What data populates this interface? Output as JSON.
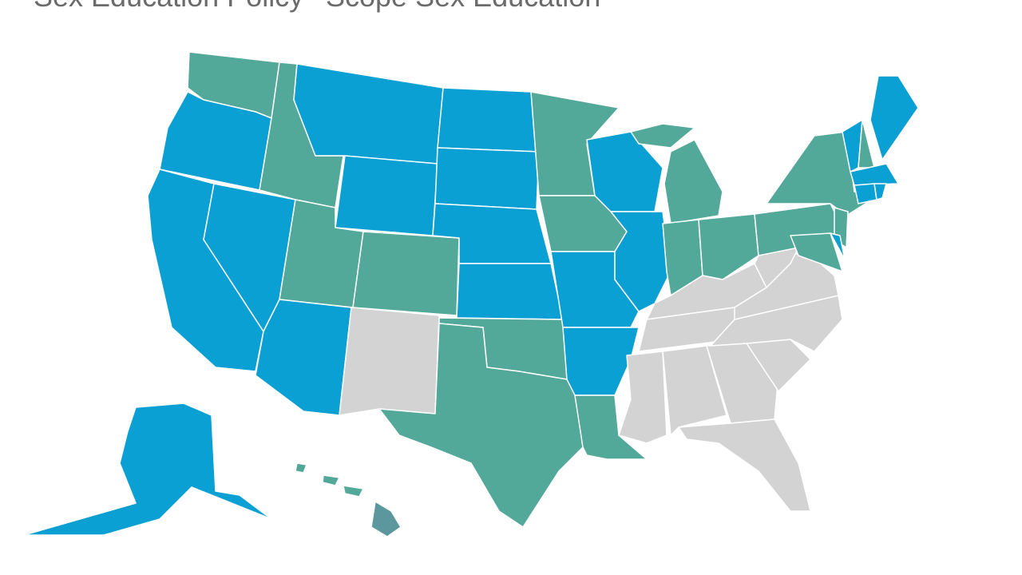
{
  "header": {
    "title": "Sex Education Policy",
    "subtitle": "Scope Sex Education"
  }
}
